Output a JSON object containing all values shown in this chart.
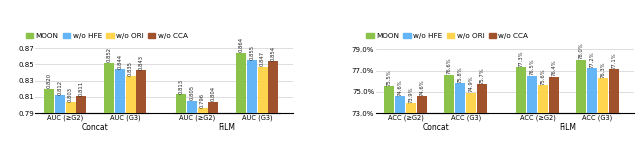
{
  "colors": {
    "MOON": "#8BC34A",
    "w/o HFE": "#64B5F6",
    "w/o ORI": "#FFD54F",
    "w/o CCA": "#A0522D"
  },
  "legend_labels": [
    "MOON",
    "w/o HFE",
    "w/o ORI",
    "w/o CCA"
  ],
  "left_chart": {
    "groups": [
      "AUC (≥G2)",
      "AUC (G3)",
      "AUC (≥G2)",
      "AUC (G3)"
    ],
    "section_labels": [
      "Concat",
      "FiLM"
    ],
    "ylim": [
      0.79,
      0.875
    ],
    "yticks": [
      0.79,
      0.81,
      0.83,
      0.85,
      0.87
    ],
    "values": {
      "Concat_AUC_ge_G2": [
        0.82,
        0.812,
        0.803,
        0.811
      ],
      "Concat_AUC_G3": [
        0.852,
        0.844,
        0.835,
        0.843
      ],
      "FiLM_AUC_ge_G2": [
        0.813,
        0.805,
        0.796,
        0.804
      ],
      "FiLM_AUC_G3": [
        0.864,
        0.855,
        0.847,
        0.854
      ]
    }
  },
  "right_chart": {
    "groups": [
      "ACC (≥G2)",
      "ACC (G3)",
      "ACC (≥G2)",
      "ACC (G3)"
    ],
    "section_labels": [
      "Concat",
      "FiLM"
    ],
    "ylim": [
      73.0,
      79.5
    ],
    "yticks": [
      73.0,
      75.0,
      77.0,
      79.0
    ],
    "ytick_labels": [
      "73.0%",
      "75.0%",
      "77.0%",
      "79.0%"
    ],
    "values": {
      "Concat_ACC_ge_G2": [
        75.5,
        74.6,
        73.9,
        74.6
      ],
      "Concat_ACC_G3": [
        76.6,
        75.8,
        74.9,
        75.7
      ],
      "FiLM_ACC_ge_G2": [
        77.3,
        76.5,
        75.6,
        76.4
      ],
      "FiLM_ACC_G3": [
        78.0,
        77.2,
        76.3,
        77.1
      ]
    }
  }
}
